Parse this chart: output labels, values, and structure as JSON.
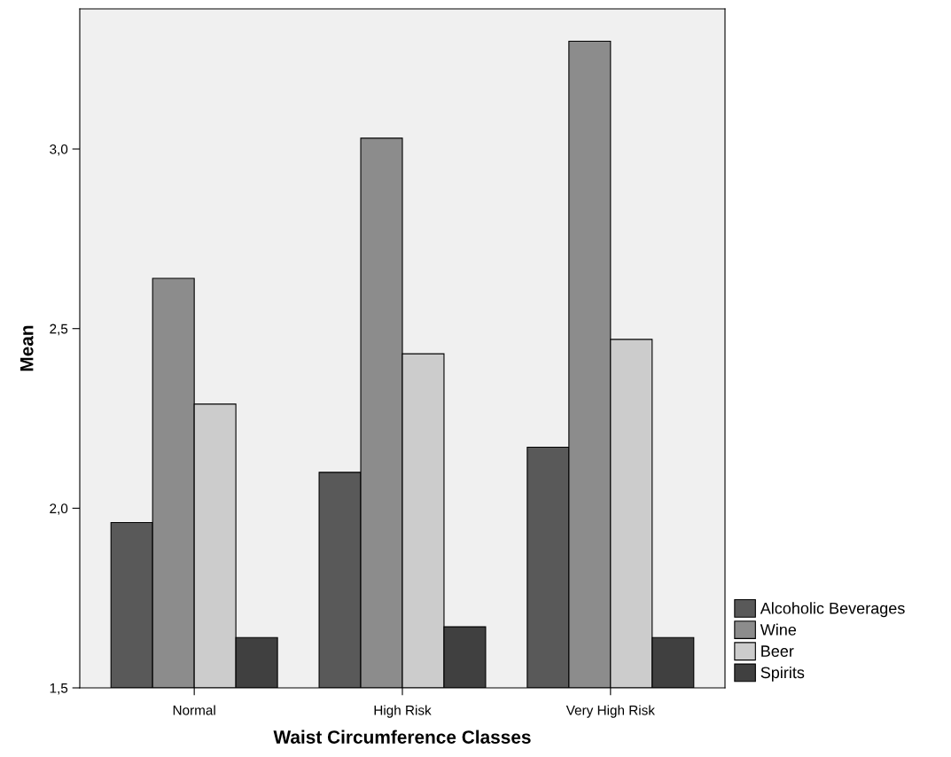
{
  "chart_data": {
    "type": "bar",
    "xlabel": "Waist Circumference Classes",
    "ylabel": "Mean",
    "categories": [
      "Normal",
      "High Risk",
      "Very High Risk"
    ],
    "series": [
      {
        "name": "Alcoholic Beverages",
        "color": "#595959",
        "values": [
          1.96,
          2.1,
          2.17
        ]
      },
      {
        "name": "Wine",
        "color": "#8c8c8c",
        "values": [
          2.64,
          3.03,
          3.3
        ]
      },
      {
        "name": "Beer",
        "color": "#cccccc",
        "values": [
          2.29,
          2.43,
          2.47
        ]
      },
      {
        "name": "Spirits",
        "color": "#404040",
        "values": [
          1.64,
          1.67,
          1.64
        ]
      }
    ],
    "ylim": [
      1.5,
      3.39
    ],
    "yticks": [
      {
        "value": 1.5,
        "label": "1,5"
      },
      {
        "value": 2.0,
        "label": "2,0"
      },
      {
        "value": 2.5,
        "label": "2,5"
      },
      {
        "value": 3.0,
        "label": "3,0"
      }
    ],
    "grid": false,
    "legend": "bottom right"
  }
}
